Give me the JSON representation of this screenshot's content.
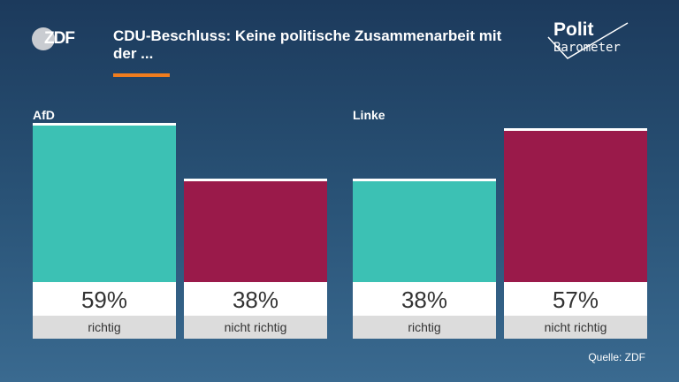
{
  "header": {
    "logo_text": "ZDF",
    "title": "CDU-Beschluss: Keine politische Zusammenarbeit mit der ...",
    "brand_line1": "Polit",
    "brand_line2": "Barometer"
  },
  "colors": {
    "richtig": "#3cc1b4",
    "nicht_richtig": "#9a1a4a",
    "accent": "#f07d1e"
  },
  "chart_data": {
    "type": "bar",
    "unit": "%",
    "ylim": [
      0,
      60
    ],
    "grid": false,
    "groups": [
      {
        "label": "AfD",
        "bars": [
          {
            "category": "richtig",
            "value": 59,
            "label": "59%"
          },
          {
            "category": "nicht richtig",
            "value": 38,
            "label": "38%"
          }
        ]
      },
      {
        "label": "Linke",
        "bars": [
          {
            "category": "richtig",
            "value": 38,
            "label": "38%"
          },
          {
            "category": "nicht richtig",
            "value": 57,
            "label": "57%"
          }
        ]
      }
    ]
  },
  "footer": {
    "source": "Quelle: ZDF"
  }
}
